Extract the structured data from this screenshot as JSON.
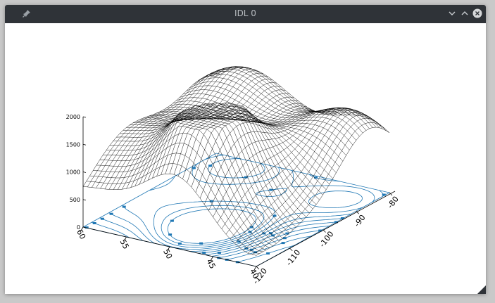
{
  "window": {
    "title": "IDL 0",
    "icons": [
      "pin-icon",
      "minimize-icon",
      "maximize-icon",
      "close-icon",
      "resize-grip-icon"
    ]
  },
  "colors": {
    "titlebar": "#2f3338",
    "mesh": "#000000",
    "contour": "#1f77b4",
    "background": "#ffffff"
  },
  "chart_data": {
    "type": "surface",
    "contour_projection": true,
    "z_axis": {
      "range": [
        0,
        2000
      ],
      "ticks": [
        "0",
        "500",
        "1000",
        "1500",
        "2000"
      ]
    },
    "y_axis": {
      "ticks": [
        "40",
        "45",
        "50",
        "55",
        "60"
      ]
    },
    "x_axis": {
      "ticks": [
        "-120",
        "-110",
        "-100",
        "-90",
        "-80"
      ]
    },
    "grid": {
      "nx": 41,
      "ny": 41
    }
  }
}
